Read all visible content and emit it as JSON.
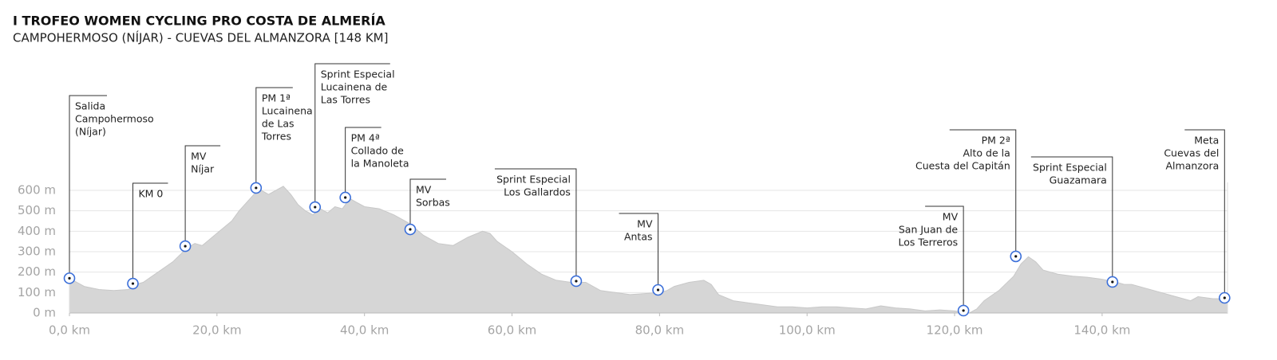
{
  "chart_data": {
    "type": "area",
    "title": "I TROFEO WOMEN CYCLING PRO COSTA DE ALMERÍA",
    "subtitle": "CAMPOHERMOSO (NÍJAR) - CUEVAS DEL ALMANZORA [148 KM]",
    "color": "#d6d6d6",
    "x": [
      0,
      2,
      4,
      6,
      8,
      9,
      10,
      12,
      14,
      16,
      17,
      18,
      19,
      20,
      22,
      23,
      24,
      25,
      26,
      27,
      28,
      29,
      30,
      31,
      32,
      33,
      34,
      35,
      36,
      37,
      38,
      39,
      40,
      42,
      44,
      46,
      47,
      48,
      50,
      52,
      54,
      56,
      57,
      58,
      60,
      62,
      64,
      66,
      68,
      70,
      72,
      74,
      76,
      78,
      80,
      81,
      82,
      84,
      86,
      87,
      88,
      90,
      92,
      94,
      96,
      98,
      100,
      102,
      104,
      106,
      108,
      110,
      112,
      114,
      116,
      118,
      120,
      121,
      122,
      123,
      124,
      126,
      128,
      129,
      130,
      131,
      132,
      134,
      136,
      138,
      140,
      142,
      143,
      144,
      146,
      148,
      150,
      152,
      153,
      155,
      157
    ],
    "values": [
      170,
      130,
      115,
      110,
      115,
      140,
      150,
      200,
      250,
      320,
      340,
      330,
      360,
      390,
      450,
      500,
      540,
      580,
      600,
      580,
      600,
      620,
      580,
      530,
      500,
      480,
      510,
      490,
      520,
      510,
      560,
      540,
      520,
      510,
      480,
      440,
      410,
      380,
      340,
      330,
      370,
      400,
      390,
      350,
      300,
      240,
      190,
      160,
      150,
      150,
      110,
      100,
      90,
      95,
      100,
      110,
      130,
      150,
      160,
      140,
      90,
      60,
      50,
      40,
      30,
      30,
      25,
      30,
      30,
      25,
      20,
      35,
      25,
      20,
      10,
      15,
      10,
      5,
      0,
      20,
      60,
      110,
      180,
      240,
      275,
      250,
      210,
      190,
      180,
      175,
      165,
      150,
      140,
      140,
      120,
      100,
      80,
      60,
      80,
      70,
      70
    ],
    "xlim": [
      0,
      157
    ],
    "ylim": [
      0,
      600
    ],
    "xticks": [
      {
        "value": 0,
        "label": "0,0 km"
      },
      {
        "value": 20,
        "label": "20,0 km"
      },
      {
        "value": 40,
        "label": "40,0 km"
      },
      {
        "value": 60,
        "label": "60,0 km"
      },
      {
        "value": 80,
        "label": "80,0 km"
      },
      {
        "value": 100,
        "label": "100,0 km"
      },
      {
        "value": 120,
        "label": "120,0 km"
      },
      {
        "value": 140,
        "label": "140,0 km"
      }
    ],
    "yticks": [
      {
        "value": 0,
        "label": "0 m"
      },
      {
        "value": 100,
        "label": "100 m"
      },
      {
        "value": 200,
        "label": "200 m"
      },
      {
        "value": 300,
        "label": "300 m"
      },
      {
        "value": 400,
        "label": "400 m"
      },
      {
        "value": 500,
        "label": "500 m"
      },
      {
        "value": 600,
        "label": "600 m"
      }
    ],
    "grid": true,
    "marker_color": "#3b6fd9",
    "annotations": [
      {
        "x": 0,
        "y": 170,
        "lines": [
          "Salida",
          "Campohermoso",
          "(Níjar)"
        ]
      },
      {
        "x": 8.6,
        "y": 144,
        "lines": [
          "KM 0"
        ]
      },
      {
        "x": 15.7,
        "y": 327,
        "lines": [
          "MV",
          "Níjar"
        ]
      },
      {
        "x": 25.3,
        "y": 612,
        "lines": [
          "PM 1ª",
          "Lucainena",
          "de Las",
          "Torres"
        ]
      },
      {
        "x": 33.3,
        "y": 518,
        "lines": [
          "Sprint Especial",
          "Lucainena de",
          "Las Torres"
        ]
      },
      {
        "x": 37.4,
        "y": 565,
        "lines": [
          "PM 4ª",
          "Collado de",
          "la Manoleta"
        ]
      },
      {
        "x": 46.2,
        "y": 409,
        "lines": [
          "MV",
          "Sorbas"
        ]
      },
      {
        "x": 68.7,
        "y": 156,
        "lines": [
          "Sprint Especial",
          "Los Gallardos"
        ]
      },
      {
        "x": 79.8,
        "y": 113,
        "lines": [
          "MV",
          "Antas"
        ]
      },
      {
        "x": 121.2,
        "y": 12,
        "lines": [
          "MV",
          "San Juan de",
          "Los Terreros"
        ]
      },
      {
        "x": 128.3,
        "y": 277,
        "lines": [
          "PM 2ª",
          "Alto de la",
          "Cuesta del Capitán"
        ]
      },
      {
        "x": 141.4,
        "y": 152,
        "lines": [
          "Sprint Especial",
          "Guazamara"
        ]
      },
      {
        "x": 156.6,
        "y": 74,
        "lines": [
          "Meta",
          "Cuevas del",
          "Almanzora"
        ]
      }
    ]
  }
}
